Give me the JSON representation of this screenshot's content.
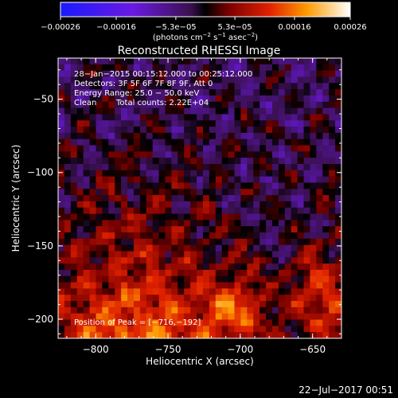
{
  "chart_data": {
    "type": "heatmap",
    "title": "Reconstructed RHESSI Image",
    "xlabel": "Heliocentric X (arcsec)",
    "ylabel": "Heliocentric Y (arcsec)",
    "xlim": [
      -826,
      -630
    ],
    "ylim": [
      -213,
      -22
    ],
    "x_ticks": [
      -800,
      -750,
      -700,
      -650
    ],
    "x_tick_labels": [
      "−800",
      "−750",
      "−700",
      "−650"
    ],
    "y_ticks": [
      -50,
      -100,
      -150,
      -200
    ],
    "y_tick_labels": [
      "−50",
      "−100",
      "−150",
      "−200"
    ],
    "colorbar": {
      "min": -0.00026,
      "max": 0.00026,
      "ticks": [
        -0.00026,
        -0.00016,
        -5.3e-05,
        5.3e-05,
        0.00016,
        0.00026
      ],
      "tick_labels": [
        "−0.00026",
        "−0.00016",
        "−5.3e−05",
        "5.3e−05",
        "0.00016",
        "0.00026"
      ],
      "unit_main": "(photons cm",
      "unit_sup1": "−2",
      "unit_mid": " s",
      "unit_sup2": "−1",
      "unit_end": " asec",
      "unit_sup3": "−2",
      "unit_close": ")"
    },
    "peak_x": -716,
    "peak_y": -192,
    "annotations": {
      "time_range": "28−Jan−2015 00:15:12.000 to 00:25:12.000",
      "detectors": "Detectors: 3F 5F 6F 7F 8F 9F, Att 0",
      "energy": "Energy Range: 25.0 − 50.0 keV",
      "algorithm": "Clean",
      "total_counts": "Total counts: 2.22E+04",
      "peak": "Position of Peak = [−716,−192]"
    },
    "grid": false
  },
  "footer": {
    "timestamp": "22−Jul−2017 00:51"
  }
}
